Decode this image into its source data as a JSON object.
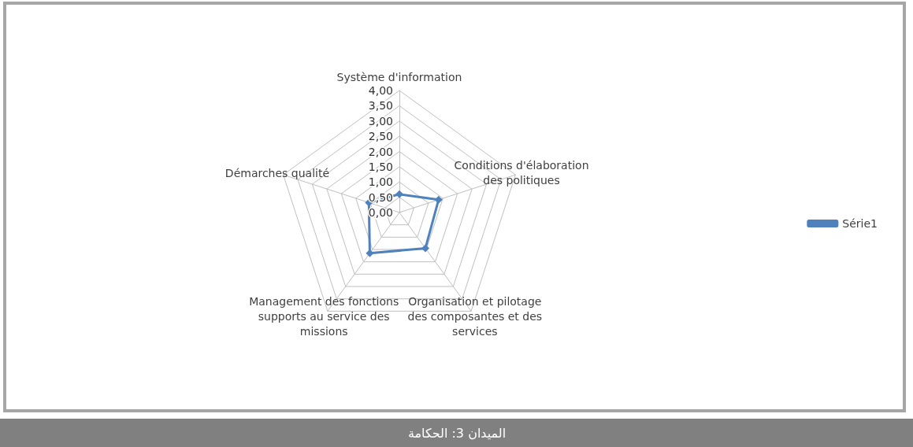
{
  "chart_data": {
    "type": "radar",
    "categories": [
      "Système d'information",
      "Conditions d'élaboration des politiques",
      "Organisation et pilotage des composantes et des services",
      "Management des fonctions supports au service des missions",
      "Démarches qualité"
    ],
    "series": [
      {
        "name": "Série1",
        "color": "#4f81bd",
        "values": [
          0.6,
          1.35,
          1.45,
          1.65,
          1.05
        ]
      }
    ],
    "ylim": [
      0,
      4
    ],
    "yticks": [
      {
        "value": 0,
        "label": "0,00"
      },
      {
        "value": 0.5,
        "label": "0,50"
      },
      {
        "value": 1,
        "label": "1,00"
      },
      {
        "value": 1.5,
        "label": "1,50"
      },
      {
        "value": 2,
        "label": "2,00"
      },
      {
        "value": 2.5,
        "label": "2,50"
      },
      {
        "value": 3,
        "label": "3,00"
      },
      {
        "value": 3.5,
        "label": "3,50"
      },
      {
        "value": 4,
        "label": "4,00"
      }
    ],
    "grid": true,
    "legend": "right",
    "marker": "diamond",
    "line_style": "solid",
    "annotations": [
      "الميدان 3: الحكامة"
    ]
  }
}
